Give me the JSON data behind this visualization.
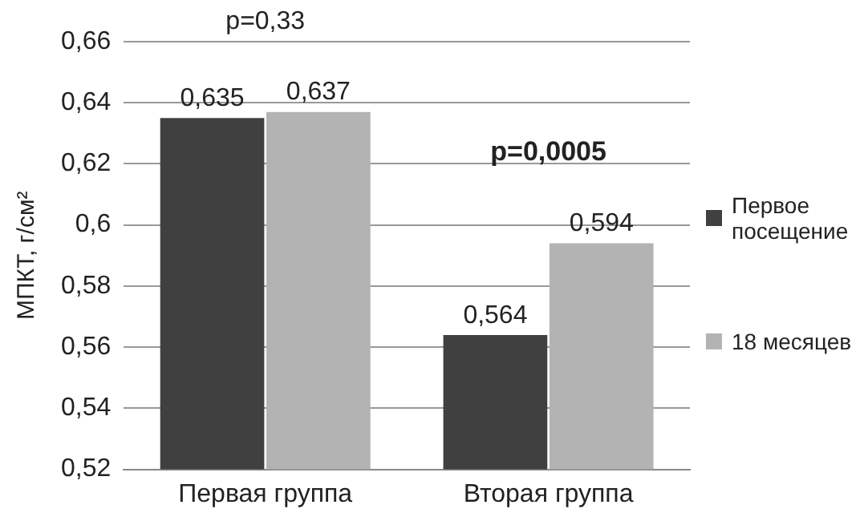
{
  "chart_data": {
    "type": "bar",
    "ylabel": "МПКТ, г/см²",
    "categories": [
      "Первая группа",
      "Вторая группа"
    ],
    "series": [
      {
        "name": "Первое посещение",
        "color": "#404040",
        "values": [
          0.635,
          0.564
        ],
        "value_labels": [
          "0,635",
          "0,564"
        ]
      },
      {
        "name": "18 месяцев",
        "color": "#b3b3b3",
        "values": [
          0.637,
          0.594
        ],
        "value_labels": [
          "0,637",
          "0,594"
        ]
      }
    ],
    "ylim": [
      0.52,
      0.66
    ],
    "yticks": [
      {
        "value": 0.52,
        "label": "0,52"
      },
      {
        "value": 0.54,
        "label": "0,54"
      },
      {
        "value": 0.56,
        "label": "0,56"
      },
      {
        "value": 0.58,
        "label": "0,58"
      },
      {
        "value": 0.6,
        "label": "0,6"
      },
      {
        "value": 0.62,
        "label": "0,62"
      },
      {
        "value": 0.64,
        "label": "0,64"
      },
      {
        "value": 0.66,
        "label": "0,66"
      }
    ],
    "grid": "y",
    "legend": "right",
    "annotations": [
      "p=0,33",
      "p=0,0005"
    ]
  }
}
